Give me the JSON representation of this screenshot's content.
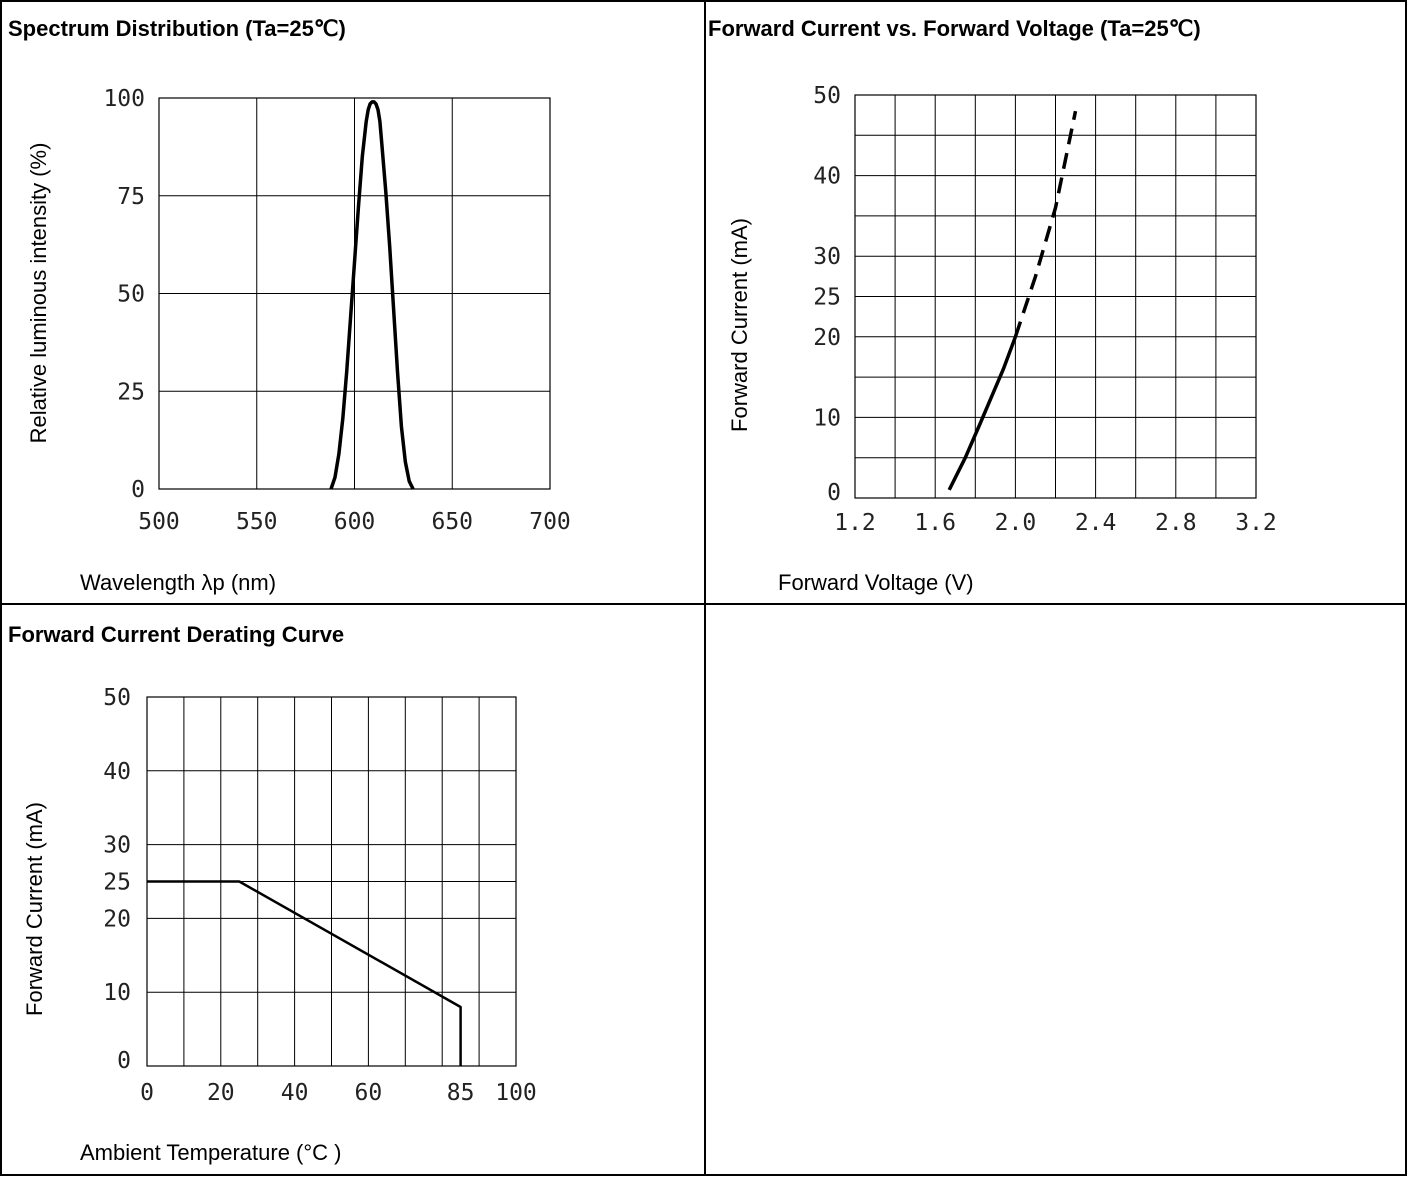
{
  "chart_data": [
    {
      "type": "line",
      "title": "Spectrum Distribution (Ta=25℃)",
      "xlabel": "Wavelength λp (nm)",
      "ylabel": "Relative luminous intensity (%)",
      "xlim": [
        500,
        700
      ],
      "ylim": [
        0,
        100
      ],
      "xticks": [
        500,
        550,
        600,
        650,
        700
      ],
      "yticks": [
        0,
        25,
        50,
        75,
        100
      ],
      "grid": true,
      "series": [
        {
          "x": [
            588,
            590,
            592,
            594,
            596,
            598,
            600,
            602,
            604,
            606,
            607,
            608,
            609,
            610,
            611,
            612,
            613,
            614,
            616,
            618,
            620,
            622,
            624,
            626,
            628,
            630
          ],
          "y": [
            0,
            3,
            9,
            18,
            30,
            44,
            58,
            72,
            85,
            94,
            97,
            98.5,
            99,
            99,
            98.5,
            97,
            94,
            88,
            76,
            62,
            46,
            30,
            16,
            7,
            2,
            0
          ]
        }
      ]
    },
    {
      "type": "line",
      "title": "Forward Current vs. Forward Voltage (Ta=25℃)",
      "xlabel": "Forward Voltage (V)",
      "ylabel": "Forward Current (mA)",
      "xlim": [
        1.2,
        3.2
      ],
      "ylim": [
        0,
        50
      ],
      "xticks": [
        "1.2",
        "1.6",
        "2.0",
        "2.4",
        "2.8",
        "3.2"
      ],
      "yticks": [
        0,
        10,
        20,
        25,
        30,
        40,
        50
      ],
      "grid": true,
      "series": [
        {
          "style": "solid",
          "x": [
            1.67,
            1.75,
            1.82,
            1.88,
            1.94,
            2.0
          ],
          "y": [
            1,
            5,
            9,
            12.5,
            16,
            20
          ]
        },
        {
          "style": "dashed",
          "x": [
            2.0,
            2.1,
            2.2,
            2.25,
            2.3
          ],
          "y": [
            20,
            27.5,
            36,
            42,
            48
          ]
        }
      ]
    },
    {
      "type": "line",
      "title": "Forward Current Derating Curve",
      "xlabel": "Ambient Temperature (°C )",
      "ylabel": "Forward Current (mA)",
      "xlim": [
        0,
        100
      ],
      "ylim": [
        0,
        50
      ],
      "xticks": [
        0,
        20,
        40,
        60,
        85,
        100
      ],
      "yticks": [
        0,
        10,
        20,
        25,
        30,
        40,
        50
      ],
      "grid": true,
      "series": [
        {
          "style": "solid",
          "x": [
            0,
            25,
            85,
            85
          ],
          "y": [
            25,
            25,
            8,
            0
          ]
        }
      ]
    }
  ]
}
